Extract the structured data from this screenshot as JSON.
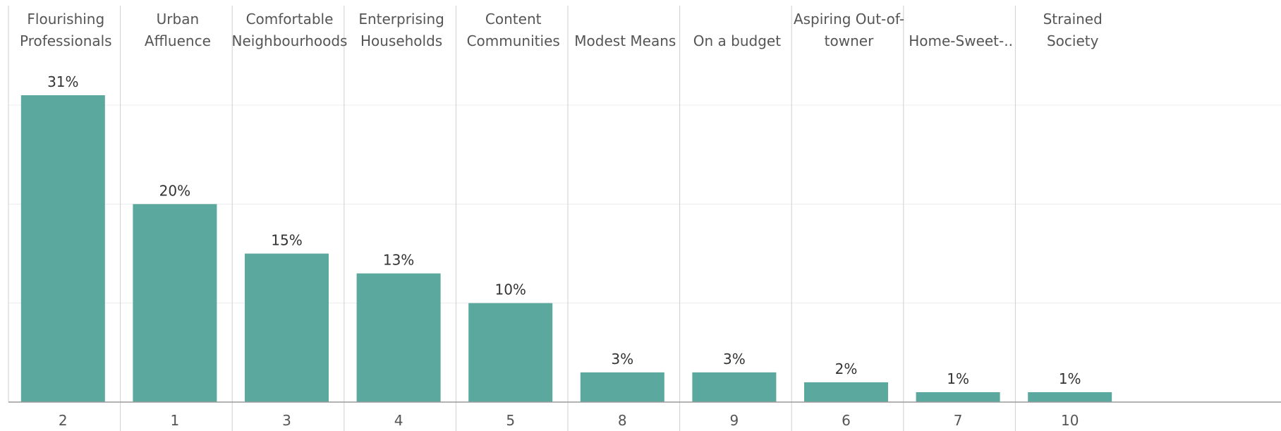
{
  "chart_data": {
    "type": "bar",
    "columns": [
      {
        "header": [
          "Flourishing",
          "Professionals"
        ],
        "tick": "2",
        "value": 31,
        "label": "31%"
      },
      {
        "header": [
          "Urban",
          "Affluence"
        ],
        "tick": "1",
        "value": 20,
        "label": "20%"
      },
      {
        "header": [
          "Comfortable",
          "Neighbourhoods"
        ],
        "tick": "3",
        "value": 15,
        "label": "15%"
      },
      {
        "header": [
          "Enterprising",
          "Households"
        ],
        "tick": "4",
        "value": 13,
        "label": "13%"
      },
      {
        "header": [
          "Content",
          "Communities"
        ],
        "tick": "5",
        "value": 10,
        "label": "10%"
      },
      {
        "header": [
          "Modest Means"
        ],
        "tick": "8",
        "value": 3,
        "label": "3%"
      },
      {
        "header": [
          "On a budget"
        ],
        "tick": "9",
        "value": 3,
        "label": "3%"
      },
      {
        "header": [
          "Aspiring Out-of-",
          "towner"
        ],
        "tick": "6",
        "value": 2,
        "label": "2%"
      },
      {
        "header": [
          "Home-Sweet-.."
        ],
        "tick": "7",
        "value": 1,
        "label": "1%"
      },
      {
        "header": [
          "Strained",
          "Society"
        ],
        "tick": "10",
        "value": 1,
        "label": "1%"
      }
    ],
    "ylim": [
      0,
      33
    ],
    "gridlines": [
      10,
      20,
      30
    ],
    "grid": true,
    "legend": "none",
    "colors": {
      "bar": "#5ba89e",
      "column_divider": "#cfcfcf",
      "gridline": "#ececec",
      "axis": "#9a9a9a"
    }
  }
}
